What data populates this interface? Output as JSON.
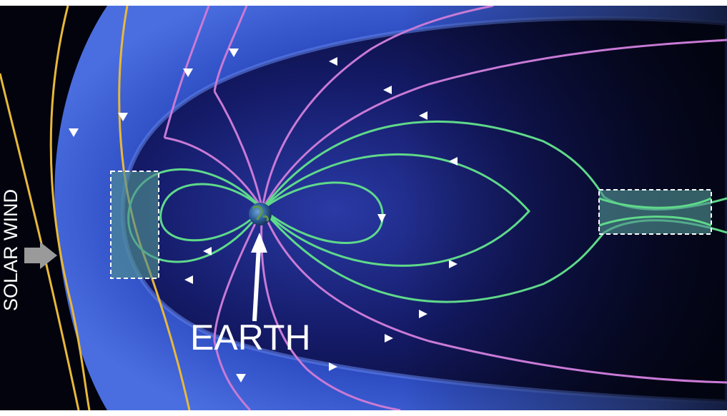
{
  "labels": {
    "earth": "EARTH",
    "solar_wind": "SOLAR WIND"
  },
  "colors": {
    "background": "#02030d",
    "magnetosheath": "#2c4dc4",
    "magnetosphere": "#1a2370",
    "solar_wind_field_lines": "#e8b83a",
    "open_field_lines": "#c97ad6",
    "closed_field_lines": "#5fd98a",
    "reconnection_box": "#4f8f8f",
    "arrow": "#9a9a9a"
  },
  "icons": [
    "earth-globe-icon",
    "solar-wind-arrow-icon",
    "earth-pointer-arrow-icon"
  ]
}
